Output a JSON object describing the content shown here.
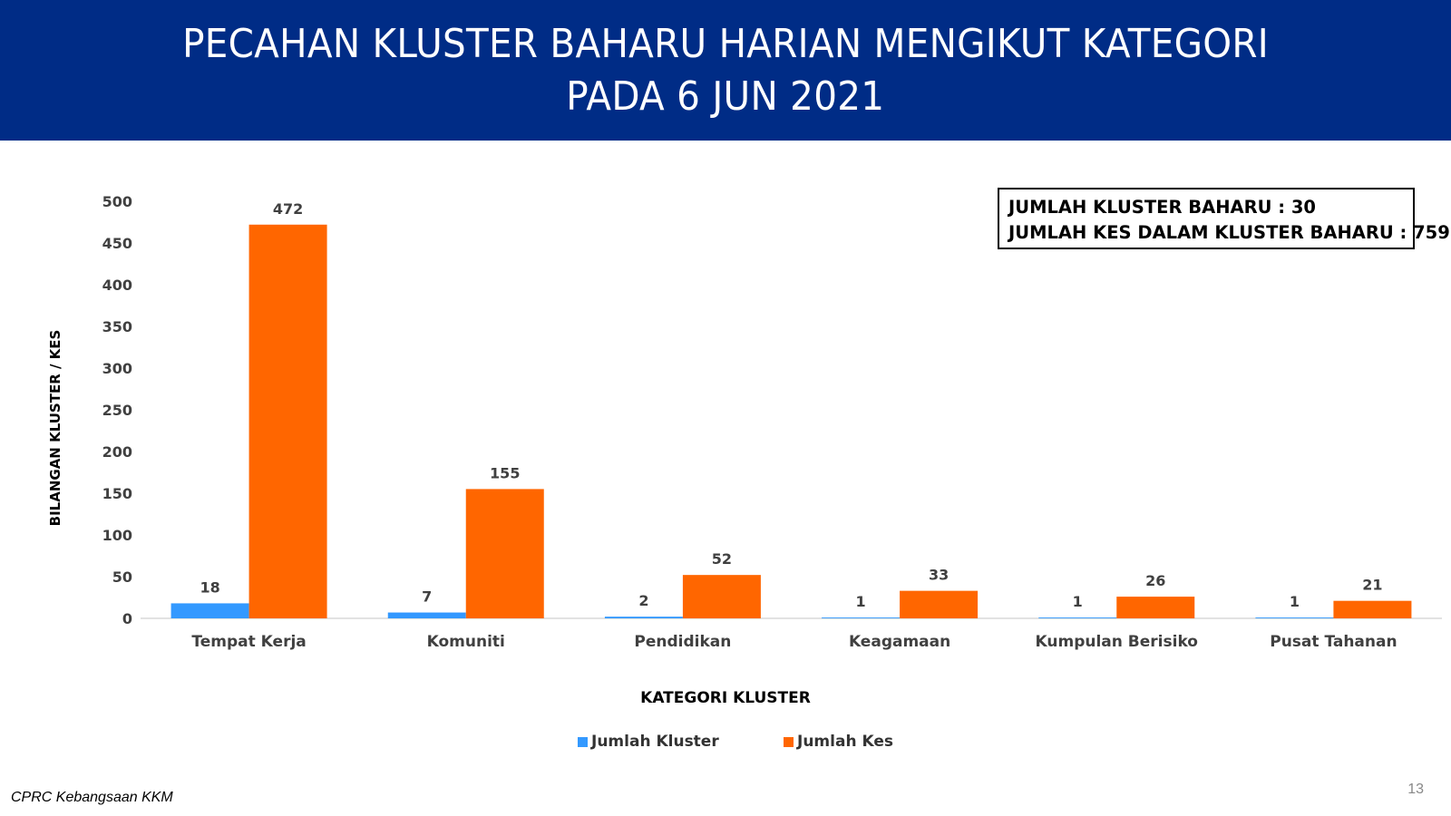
{
  "header": {
    "title_line1": "PECAHAN KLUSTER BAHARU HARIAN MENGIKUT KATEGORI",
    "title_line2": "PADA 6 JUN 2021"
  },
  "summary": {
    "line1": "JUMLAH KLUSTER BAHARU : 30",
    "line2": "JUMLAH KES DALAM KLUSTER BAHARU : 759"
  },
  "footer": {
    "source": "CPRC Kebangsaan KKM",
    "page_number": "13"
  },
  "chart_data": {
    "type": "bar",
    "xlabel": "KATEGORI KLUSTER",
    "ylabel": "BILANGAN KLUSTER / KES",
    "ylim": [
      0,
      500
    ],
    "yticks": [
      0,
      50,
      100,
      150,
      200,
      250,
      300,
      350,
      400,
      450,
      500
    ],
    "grid": false,
    "legend_position": "bottom",
    "categories": [
      "Tempat Kerja",
      "Komuniti",
      "Pendidikan",
      "Keagamaan",
      "Kumpulan Berisiko",
      "Pusat Tahanan"
    ],
    "series": [
      {
        "name": "Jumlah Kluster",
        "color": "#3399ff",
        "values": [
          18,
          7,
          2,
          1,
          1,
          1
        ]
      },
      {
        "name": "Jumlah Kes",
        "color": "#ff6600",
        "values": [
          472,
          155,
          52,
          33,
          26,
          21
        ]
      }
    ]
  }
}
